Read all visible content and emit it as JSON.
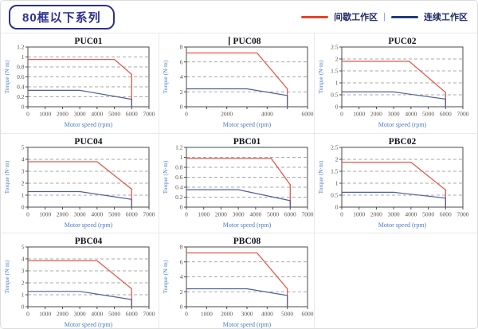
{
  "page": {
    "title_badge": "80框以下系列"
  },
  "legend": {
    "intermittent_label": "间歇工作区",
    "divider": "|",
    "continuous_label": "连续工作区",
    "intermittent_color": "#e8432c",
    "continuous_color": "#1e3d7b"
  },
  "chart_data": {
    "type": "line",
    "xlabel": "Motor speed (rpm)",
    "ylabel": "Torque (N·m)",
    "grid": "dashed-horizontal",
    "series_names": {
      "red": "间歇工作区",
      "blue": "连续工作区"
    },
    "colors": {
      "red": "#e4584a",
      "blue": "#4f5f94"
    },
    "charts": [
      {
        "title": "PUC01",
        "cursor": false,
        "x": {
          "max": 7000,
          "label_step": 1000,
          "minor_step": 1000
        },
        "y": {
          "max": 1.2,
          "step": 0.2
        },
        "series": {
          "intermittent": [
            [
              0,
              0.95
            ],
            [
              5000,
              0.95
            ],
            [
              6000,
              0.65
            ],
            [
              6000,
              0
            ]
          ],
          "continuous": [
            [
              0,
              0.33
            ],
            [
              3000,
              0.33
            ],
            [
              6000,
              0.15
            ],
            [
              6000,
              0
            ]
          ]
        }
      },
      {
        "title": "PUC08",
        "cursor": true,
        "x": {
          "max": 6000,
          "label_step": 2000,
          "minor_step": 1000
        },
        "y": {
          "max": 8,
          "step": 2
        },
        "series": {
          "intermittent": [
            [
              0,
              7.2
            ],
            [
              3500,
              7.2
            ],
            [
              5000,
              2.4
            ],
            [
              5000,
              0
            ]
          ],
          "continuous": [
            [
              0,
              2.4
            ],
            [
              3000,
              2.4
            ],
            [
              5000,
              1.5
            ],
            [
              5000,
              0
            ]
          ]
        }
      },
      {
        "title": "PUC02",
        "cursor": false,
        "x": {
          "max": 7000,
          "label_step": 1000,
          "minor_step": 1000
        },
        "y": {
          "max": 2.5,
          "step": 0.5
        },
        "series": {
          "intermittent": [
            [
              0,
              1.9
            ],
            [
              3900,
              1.9
            ],
            [
              6000,
              0.6
            ],
            [
              6000,
              0
            ]
          ],
          "continuous": [
            [
              0,
              0.62
            ],
            [
              3000,
              0.62
            ],
            [
              6000,
              0.32
            ],
            [
              6000,
              0
            ]
          ]
        }
      },
      {
        "title": "PUC04",
        "cursor": false,
        "x": {
          "max": 7000,
          "label_step": 1000,
          "minor_step": 1000
        },
        "y": {
          "max": 5,
          "step": 1
        },
        "series": {
          "intermittent": [
            [
              0,
              3.8
            ],
            [
              4000,
              3.8
            ],
            [
              6000,
              1.5
            ],
            [
              6000,
              0
            ]
          ],
          "continuous": [
            [
              0,
              1.3
            ],
            [
              3000,
              1.3
            ],
            [
              6000,
              0.65
            ],
            [
              6000,
              0
            ]
          ]
        }
      },
      {
        "title": "PBC01",
        "cursor": false,
        "x": {
          "max": 7000,
          "label_step": 1000,
          "minor_step": 1000
        },
        "y": {
          "max": 1.2,
          "step": 0.2
        },
        "series": {
          "intermittent": [
            [
              0,
              0.98
            ],
            [
              4900,
              0.98
            ],
            [
              6000,
              0.45
            ],
            [
              6000,
              0
            ]
          ],
          "continuous": [
            [
              0,
              0.35
            ],
            [
              3000,
              0.35
            ],
            [
              6000,
              0.13
            ],
            [
              6000,
              0
            ]
          ]
        }
      },
      {
        "title": "PBC02",
        "cursor": false,
        "x": {
          "max": 7000,
          "label_step": 1000,
          "minor_step": 1000
        },
        "y": {
          "max": 2.5,
          "step": 0.5
        },
        "series": {
          "intermittent": [
            [
              0,
              1.88
            ],
            [
              4000,
              1.88
            ],
            [
              6000,
              0.72
            ],
            [
              6000,
              0
            ]
          ],
          "continuous": [
            [
              0,
              0.62
            ],
            [
              3000,
              0.62
            ],
            [
              6000,
              0.38
            ],
            [
              6000,
              0
            ]
          ]
        }
      },
      {
        "title": "PBC04",
        "cursor": false,
        "x": {
          "max": 7000,
          "label_step": 1000,
          "minor_step": 1000
        },
        "y": {
          "max": 5,
          "step": 1
        },
        "series": {
          "intermittent": [
            [
              0,
              3.85
            ],
            [
              4000,
              3.85
            ],
            [
              6000,
              1.5
            ],
            [
              6000,
              0
            ]
          ],
          "continuous": [
            [
              0,
              1.28
            ],
            [
              3000,
              1.28
            ],
            [
              6000,
              0.6
            ],
            [
              6000,
              0
            ]
          ]
        }
      },
      {
        "title": "PBC08",
        "cursor": false,
        "x": {
          "max": 6000,
          "label_step": 1000,
          "minor_step": 1000
        },
        "y": {
          "max": 8,
          "step": 2
        },
        "series": {
          "intermittent": [
            [
              0,
              7.2
            ],
            [
              3500,
              7.2
            ],
            [
              5000,
              2.4
            ],
            [
              5000,
              0
            ]
          ],
          "continuous": [
            [
              0,
              2.4
            ],
            [
              3000,
              2.4
            ],
            [
              5000,
              1.5
            ],
            [
              5000,
              0
            ]
          ]
        }
      }
    ]
  }
}
